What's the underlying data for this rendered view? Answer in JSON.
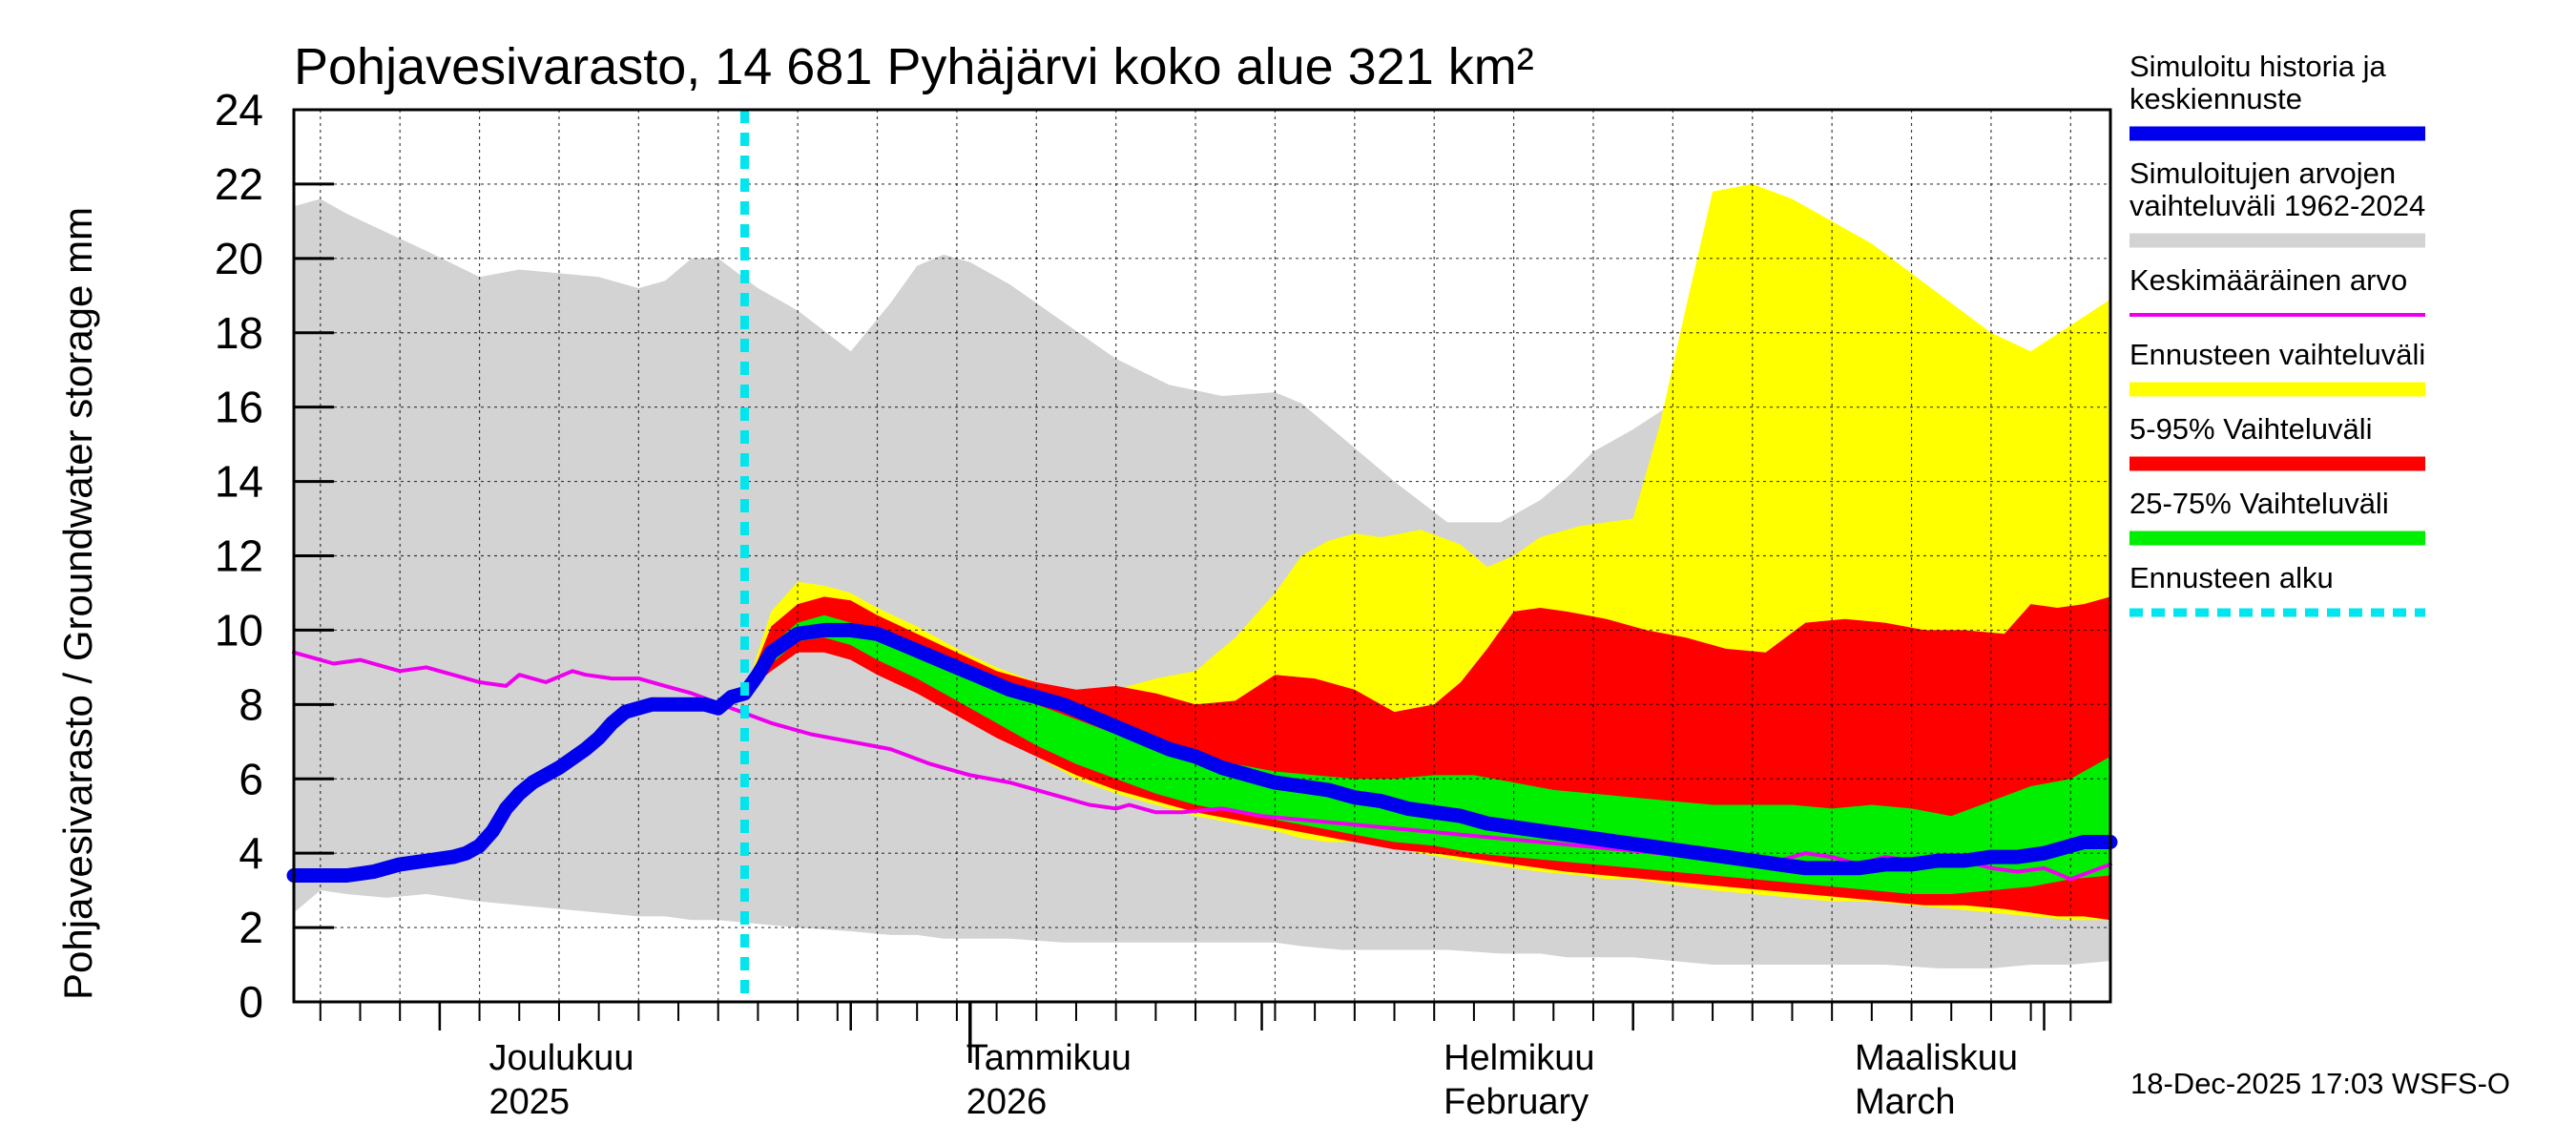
{
  "chart_data": {
    "type": "area",
    "title": "Pohjavesivarasto, 14 681 Pyhäjärvi koko alue 321 km²",
    "ylabel": "Pohjavesivarasto / Groundwater storage   mm",
    "xlabel": "",
    "ylim": [
      0,
      24
    ],
    "yticks": [
      0,
      2,
      4,
      6,
      8,
      10,
      12,
      14,
      16,
      18,
      20,
      22,
      24
    ],
    "x_unit": "days since 2025-11-20",
    "xlim": [
      0,
      137
    ],
    "forecast_start_day": 34,
    "grid": true,
    "month_labels": [
      {
        "day": 15,
        "line1": "Joulukuu",
        "line2": "2025"
      },
      {
        "day": 51,
        "line1": "Tammikuu",
        "line2": "2026"
      },
      {
        "day": 87,
        "line1": "Helmikuu",
        "line2": "February"
      },
      {
        "day": 118,
        "line1": "Maaliskuu",
        "line2": "March"
      }
    ],
    "year_ticks": [
      51
    ],
    "footer": "18-Dec-2025 17:03 WSFS-O",
    "legend": [
      {
        "label_lines": [
          "Simuloitu historia ja",
          "keskiennuste"
        ],
        "color": "#0000ee",
        "style": "thick"
      },
      {
        "label_lines": [
          "Simuloitujen arvojen",
          "vaihteluväli 1962-2024"
        ],
        "color": "#d3d3d3",
        "style": "band"
      },
      {
        "label_lines": [
          "Keskimääräinen arvo"
        ],
        "color": "#ee00ee",
        "style": "thin"
      },
      {
        "label_lines": [
          "Ennusteen vaihteluväli"
        ],
        "color": "#ffff00",
        "style": "band"
      },
      {
        "label_lines": [
          "5-95% Vaihteluväli"
        ],
        "color": "#ff0000",
        "style": "band"
      },
      {
        "label_lines": [
          "25-75% Vaihteluväli"
        ],
        "color": "#00ee00",
        "style": "band"
      },
      {
        "label_lines": [
          "Ennusteen alku"
        ],
        "color": "#00e5ee",
        "style": "dashed"
      }
    ],
    "series": [
      {
        "name": "Simuloitujen arvojen vaihteluväli 1962-2024",
        "kind": "band",
        "color": "#d3d3d3",
        "x": [
          0,
          2,
          4,
          7,
          10,
          14,
          17,
          20,
          23,
          26,
          28,
          30,
          32,
          35,
          38,
          42,
          45,
          47,
          49,
          51,
          54,
          58,
          62,
          66,
          70,
          74,
          76,
          79,
          83,
          87,
          91,
          94,
          96,
          98,
          101,
          104,
          107,
          110,
          113,
          116,
          120,
          124,
          128,
          131,
          134,
          137
        ],
        "lower": [
          2.4,
          3.0,
          2.9,
          2.8,
          2.9,
          2.7,
          2.6,
          2.5,
          2.4,
          2.3,
          2.3,
          2.2,
          2.2,
          2.1,
          2.0,
          1.9,
          1.8,
          1.8,
          1.7,
          1.7,
          1.7,
          1.6,
          1.6,
          1.6,
          1.6,
          1.6,
          1.5,
          1.4,
          1.4,
          1.4,
          1.3,
          1.3,
          1.2,
          1.2,
          1.2,
          1.1,
          1.0,
          1.0,
          1.0,
          1.0,
          1.0,
          0.9,
          0.9,
          1.0,
          1.0,
          1.1
        ],
        "upper": [
          21.4,
          21.6,
          21.2,
          20.7,
          20.2,
          19.5,
          19.7,
          19.6,
          19.5,
          19.2,
          19.4,
          20.0,
          20.0,
          19.2,
          18.6,
          17.5,
          18.8,
          19.8,
          20.1,
          19.9,
          19.3,
          18.3,
          17.3,
          16.6,
          16.3,
          16.4,
          16.1,
          15.2,
          14.0,
          12.9,
          12.9,
          13.5,
          14.1,
          14.8,
          15.4,
          16.1,
          17.1,
          17.3,
          16.9,
          16.7,
          16.2,
          15.8,
          15.5,
          15.7,
          15.8,
          15.9
        ]
      },
      {
        "name": "Ennusteen vaihteluväli",
        "kind": "band",
        "color": "#ffff00",
        "x": [
          34,
          36,
          38,
          40,
          42,
          44,
          47,
          50,
          53,
          56,
          59,
          62,
          65,
          68,
          71,
          74,
          76,
          78,
          80,
          82,
          85,
          88,
          90,
          92,
          94,
          97,
          99,
          101,
          103,
          105,
          107,
          110,
          113,
          116,
          119,
          122,
          125,
          128,
          131,
          134,
          137
        ],
        "lower": [
          8.3,
          9.0,
          9.6,
          9.5,
          9.3,
          8.9,
          8.4,
          7.8,
          7.2,
          6.6,
          6.0,
          5.6,
          5.3,
          5.0,
          4.8,
          4.6,
          4.4,
          4.3,
          4.3,
          4.2,
          4.0,
          3.8,
          3.7,
          3.6,
          3.5,
          3.4,
          3.3,
          3.3,
          3.2,
          3.1,
          3.0,
          2.9,
          2.8,
          2.7,
          2.7,
          2.6,
          2.5,
          2.4,
          2.3,
          2.2,
          2.2
        ],
        "upper": [
          8.3,
          10.5,
          11.3,
          11.2,
          11.0,
          10.6,
          10.1,
          9.5,
          9.0,
          8.6,
          8.3,
          8.4,
          8.7,
          8.9,
          9.8,
          11.0,
          12.0,
          12.4,
          12.6,
          12.5,
          12.7,
          12.3,
          11.7,
          12.0,
          12.5,
          12.8,
          12.9,
          13.0,
          15.5,
          18.7,
          21.8,
          22.0,
          21.6,
          21.0,
          20.4,
          19.6,
          18.8,
          18.0,
          17.5,
          18.2,
          18.9
        ]
      },
      {
        "name": "5-95% Vaihteluväli",
        "kind": "band",
        "color": "#ff0000",
        "x": [
          34,
          36,
          38,
          40,
          42,
          44,
          47,
          50,
          53,
          56,
          59,
          62,
          65,
          68,
          71,
          74,
          77,
          80,
          83,
          86,
          88,
          90,
          92,
          94,
          96,
          99,
          102,
          105,
          108,
          111,
          114,
          117,
          120,
          123,
          126,
          129,
          131,
          133,
          135,
          137
        ],
        "lower": [
          8.3,
          8.9,
          9.4,
          9.4,
          9.2,
          8.8,
          8.3,
          7.7,
          7.1,
          6.6,
          6.1,
          5.7,
          5.4,
          5.1,
          4.9,
          4.7,
          4.5,
          4.3,
          4.1,
          4.0,
          3.9,
          3.8,
          3.7,
          3.6,
          3.5,
          3.4,
          3.3,
          3.2,
          3.1,
          3.0,
          2.9,
          2.8,
          2.7,
          2.6,
          2.6,
          2.5,
          2.4,
          2.3,
          2.3,
          2.2
        ],
        "upper": [
          8.3,
          10.1,
          10.7,
          10.9,
          10.8,
          10.4,
          9.9,
          9.4,
          8.9,
          8.6,
          8.4,
          8.5,
          8.3,
          8.0,
          8.1,
          8.8,
          8.7,
          8.4,
          7.8,
          8.0,
          8.6,
          9.5,
          10.5,
          10.6,
          10.5,
          10.3,
          10.0,
          9.8,
          9.5,
          9.4,
          10.2,
          10.3,
          10.2,
          10.0,
          10.0,
          9.9,
          10.7,
          10.6,
          10.7,
          10.9
        ]
      },
      {
        "name": "25-75% Vaihteluväli",
        "kind": "band",
        "color": "#00ee00",
        "x": [
          34,
          36,
          38,
          40,
          42,
          44,
          47,
          50,
          53,
          56,
          59,
          62,
          65,
          68,
          71,
          74,
          77,
          80,
          83,
          86,
          89,
          92,
          95,
          98,
          101,
          104,
          107,
          110,
          113,
          116,
          119,
          122,
          125,
          128,
          131,
          134,
          137
        ],
        "lower": [
          8.3,
          9.1,
          9.7,
          9.8,
          9.6,
          9.2,
          8.7,
          8.1,
          7.5,
          6.9,
          6.4,
          6.0,
          5.6,
          5.3,
          5.1,
          4.9,
          4.7,
          4.5,
          4.3,
          4.2,
          4.0,
          3.9,
          3.8,
          3.7,
          3.6,
          3.5,
          3.4,
          3.3,
          3.2,
          3.1,
          3.0,
          2.9,
          2.9,
          3.0,
          3.1,
          3.3,
          3.4
        ],
        "upper": [
          8.3,
          9.6,
          10.2,
          10.4,
          10.2,
          9.9,
          9.4,
          8.9,
          8.4,
          8.0,
          7.6,
          7.2,
          6.9,
          6.6,
          6.4,
          6.2,
          6.1,
          6.0,
          6.0,
          6.1,
          6.1,
          5.9,
          5.7,
          5.6,
          5.5,
          5.4,
          5.3,
          5.3,
          5.3,
          5.2,
          5.3,
          5.2,
          5.0,
          5.4,
          5.8,
          6.0,
          6.6
        ]
      },
      {
        "name": "Keskimääräinen arvo",
        "kind": "line",
        "color": "#ee00ee",
        "x": [
          0,
          2,
          3,
          5,
          7,
          8,
          10,
          12,
          13,
          14,
          16,
          17,
          19,
          21,
          22,
          24,
          26,
          28,
          30,
          33,
          36,
          39,
          42,
          45,
          48,
          51,
          54,
          57,
          60,
          62,
          63,
          65,
          67,
          70,
          73,
          76,
          79,
          82,
          85,
          88,
          91,
          94,
          97,
          100,
          103,
          106,
          109,
          112,
          114,
          116,
          118,
          120,
          122,
          124,
          126,
          128,
          130,
          132,
          134,
          137
        ],
        "values": [
          9.4,
          9.2,
          9.1,
          9.2,
          9.0,
          8.9,
          9.0,
          8.8,
          8.7,
          8.6,
          8.5,
          8.8,
          8.6,
          8.9,
          8.8,
          8.7,
          8.7,
          8.5,
          8.3,
          7.9,
          7.5,
          7.2,
          7.0,
          6.8,
          6.4,
          6.1,
          5.9,
          5.6,
          5.3,
          5.2,
          5.3,
          5.1,
          5.1,
          5.2,
          5.0,
          4.9,
          4.8,
          4.7,
          4.6,
          4.5,
          4.4,
          4.3,
          4.2,
          4.1,
          4.0,
          3.9,
          3.8,
          3.8,
          4.0,
          3.9,
          3.7,
          3.9,
          3.8,
          3.7,
          3.8,
          3.6,
          3.5,
          3.6,
          3.3,
          3.7
        ]
      },
      {
        "name": "Simuloitu historia ja keskiennuste",
        "kind": "line",
        "color": "#0000ee",
        "x": [
          0,
          2,
          4,
          6,
          8,
          10,
          12,
          13,
          14,
          15,
          16,
          17,
          18,
          20,
          22,
          23,
          24,
          25,
          26,
          27,
          28,
          29,
          30,
          31,
          32,
          33,
          34,
          35,
          36,
          38,
          40,
          42,
          44,
          46,
          48,
          50,
          52,
          54,
          56,
          58,
          60,
          62,
          64,
          66,
          68,
          70,
          72,
          74,
          76,
          78,
          80,
          82,
          84,
          86,
          88,
          90,
          92,
          94,
          96,
          98,
          100,
          102,
          104,
          106,
          108,
          110,
          112,
          114,
          116,
          118,
          120,
          122,
          124,
          126,
          128,
          130,
          132,
          134,
          135,
          137
        ],
        "values": [
          3.4,
          3.4,
          3.4,
          3.5,
          3.7,
          3.8,
          3.9,
          4.0,
          4.2,
          4.6,
          5.2,
          5.6,
          5.9,
          6.3,
          6.8,
          7.1,
          7.5,
          7.8,
          7.9,
          8.0,
          8.0,
          8.0,
          8.0,
          8.0,
          7.9,
          8.2,
          8.3,
          8.8,
          9.4,
          9.9,
          10.0,
          10.0,
          9.9,
          9.6,
          9.3,
          9.0,
          8.7,
          8.4,
          8.2,
          8.0,
          7.7,
          7.4,
          7.1,
          6.8,
          6.6,
          6.3,
          6.1,
          5.9,
          5.8,
          5.7,
          5.5,
          5.4,
          5.2,
          5.1,
          5.0,
          4.8,
          4.7,
          4.6,
          4.5,
          4.4,
          4.3,
          4.2,
          4.1,
          4.0,
          3.9,
          3.8,
          3.7,
          3.6,
          3.6,
          3.6,
          3.7,
          3.7,
          3.8,
          3.8,
          3.9,
          3.9,
          4.0,
          4.2,
          4.3,
          4.3
        ]
      }
    ]
  }
}
